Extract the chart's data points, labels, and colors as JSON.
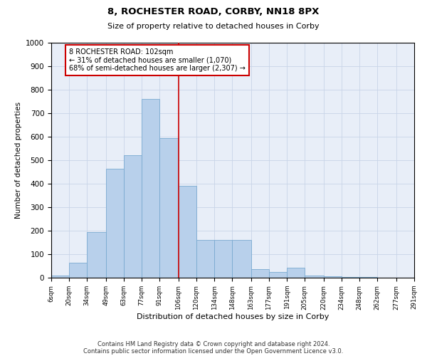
{
  "title": "8, ROCHESTER ROAD, CORBY, NN18 8PX",
  "subtitle": "Size of property relative to detached houses in Corby",
  "xlabel": "Distribution of detached houses by size in Corby",
  "ylabel": "Number of detached properties",
  "categories": [
    "6sqm",
    "20sqm",
    "34sqm",
    "49sqm",
    "63sqm",
    "77sqm",
    "91sqm",
    "106sqm",
    "120sqm",
    "134sqm",
    "148sqm",
    "163sqm",
    "177sqm",
    "191sqm",
    "205sqm",
    "220sqm",
    "234sqm",
    "248sqm",
    "262sqm",
    "277sqm",
    "291sqm"
  ],
  "values": [
    10,
    65,
    195,
    465,
    520,
    760,
    595,
    390,
    160,
    160,
    160,
    35,
    25,
    42,
    10,
    5,
    3,
    2,
    1,
    1
  ],
  "bar_color": "#b8d0eb",
  "bar_edge_color": "#7aaad0",
  "grid_color": "#c8d4e8",
  "background_color": "#e8eef8",
  "property_line_x": 106,
  "annotation_text": "8 ROCHESTER ROAD: 102sqm\n← 31% of detached houses are smaller (1,070)\n68% of semi-detached houses are larger (2,307) →",
  "annotation_box_color": "#ffffff",
  "annotation_box_edge_color": "#cc0000",
  "red_line_color": "#cc0000",
  "footnote1": "Contains HM Land Registry data © Crown copyright and database right 2024.",
  "footnote2": "Contains public sector information licensed under the Open Government Licence v3.0.",
  "ylim": [
    0,
    1000
  ],
  "bin_edges": [
    6,
    20,
    34,
    49,
    63,
    77,
    91,
    106,
    120,
    134,
    148,
    163,
    177,
    191,
    205,
    220,
    234,
    248,
    262,
    277,
    291
  ]
}
